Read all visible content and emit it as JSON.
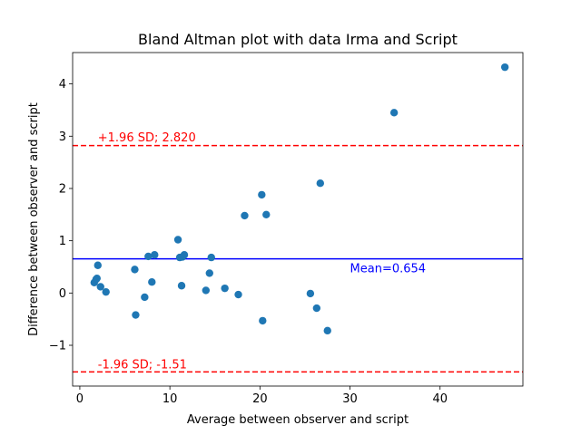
{
  "chart_data": {
    "type": "scatter",
    "title": "Bland Altman plot with data Irma and Script",
    "xlabel": "Average between observer and script",
    "ylabel": "Difference between observer and script",
    "xlim": [
      -0.8,
      49.2
    ],
    "ylim": [
      -1.78,
      4.6
    ],
    "xticks": [
      0,
      10,
      20,
      30,
      40
    ],
    "yticks": [
      -1,
      0,
      1,
      2,
      3,
      4
    ],
    "grid": false,
    "point_color": "#1f77b4",
    "points": [
      {
        "x": 1.6,
        "y": 0.2
      },
      {
        "x": 1.8,
        "y": 0.26
      },
      {
        "x": 1.9,
        "y": 0.28
      },
      {
        "x": 2.0,
        "y": 0.53
      },
      {
        "x": 2.3,
        "y": 0.12
      },
      {
        "x": 2.9,
        "y": 0.02
      },
      {
        "x": 6.1,
        "y": 0.45
      },
      {
        "x": 6.2,
        "y": -0.42
      },
      {
        "x": 7.2,
        "y": -0.08
      },
      {
        "x": 7.6,
        "y": 0.7
      },
      {
        "x": 8.0,
        "y": 0.21
      },
      {
        "x": 8.3,
        "y": 0.73
      },
      {
        "x": 10.9,
        "y": 1.02
      },
      {
        "x": 11.1,
        "y": 0.68
      },
      {
        "x": 11.3,
        "y": 0.14
      },
      {
        "x": 11.4,
        "y": 0.69
      },
      {
        "x": 11.6,
        "y": 0.73
      },
      {
        "x": 14.0,
        "y": 0.05
      },
      {
        "x": 14.4,
        "y": 0.38
      },
      {
        "x": 14.6,
        "y": 0.68
      },
      {
        "x": 16.1,
        "y": 0.09
      },
      {
        "x": 17.6,
        "y": -0.03
      },
      {
        "x": 18.3,
        "y": 1.48
      },
      {
        "x": 20.2,
        "y": 1.88
      },
      {
        "x": 20.3,
        "y": -0.53
      },
      {
        "x": 20.7,
        "y": 1.5
      },
      {
        "x": 25.6,
        "y": -0.01
      },
      {
        "x": 26.3,
        "y": -0.29
      },
      {
        "x": 26.7,
        "y": 2.1
      },
      {
        "x": 27.5,
        "y": -0.72
      },
      {
        "x": 34.9,
        "y": 3.45
      },
      {
        "x": 47.2,
        "y": 4.32
      }
    ],
    "reference_lines": [
      {
        "y": 0.654,
        "color": "#0000ff",
        "style": "solid",
        "label": "Mean=0.654",
        "label_x": 30.0,
        "label_y": 0.4
      },
      {
        "y": 2.82,
        "color": "#ff0000",
        "style": "dashed",
        "label": "+1.96 SD; 2.820",
        "label_x": 2.0,
        "label_y": 2.9
      },
      {
        "y": -1.51,
        "color": "#ff0000",
        "style": "dashed",
        "label": "-1.96 SD; -1.51",
        "label_x": 2.0,
        "label_y": -1.44
      }
    ]
  }
}
